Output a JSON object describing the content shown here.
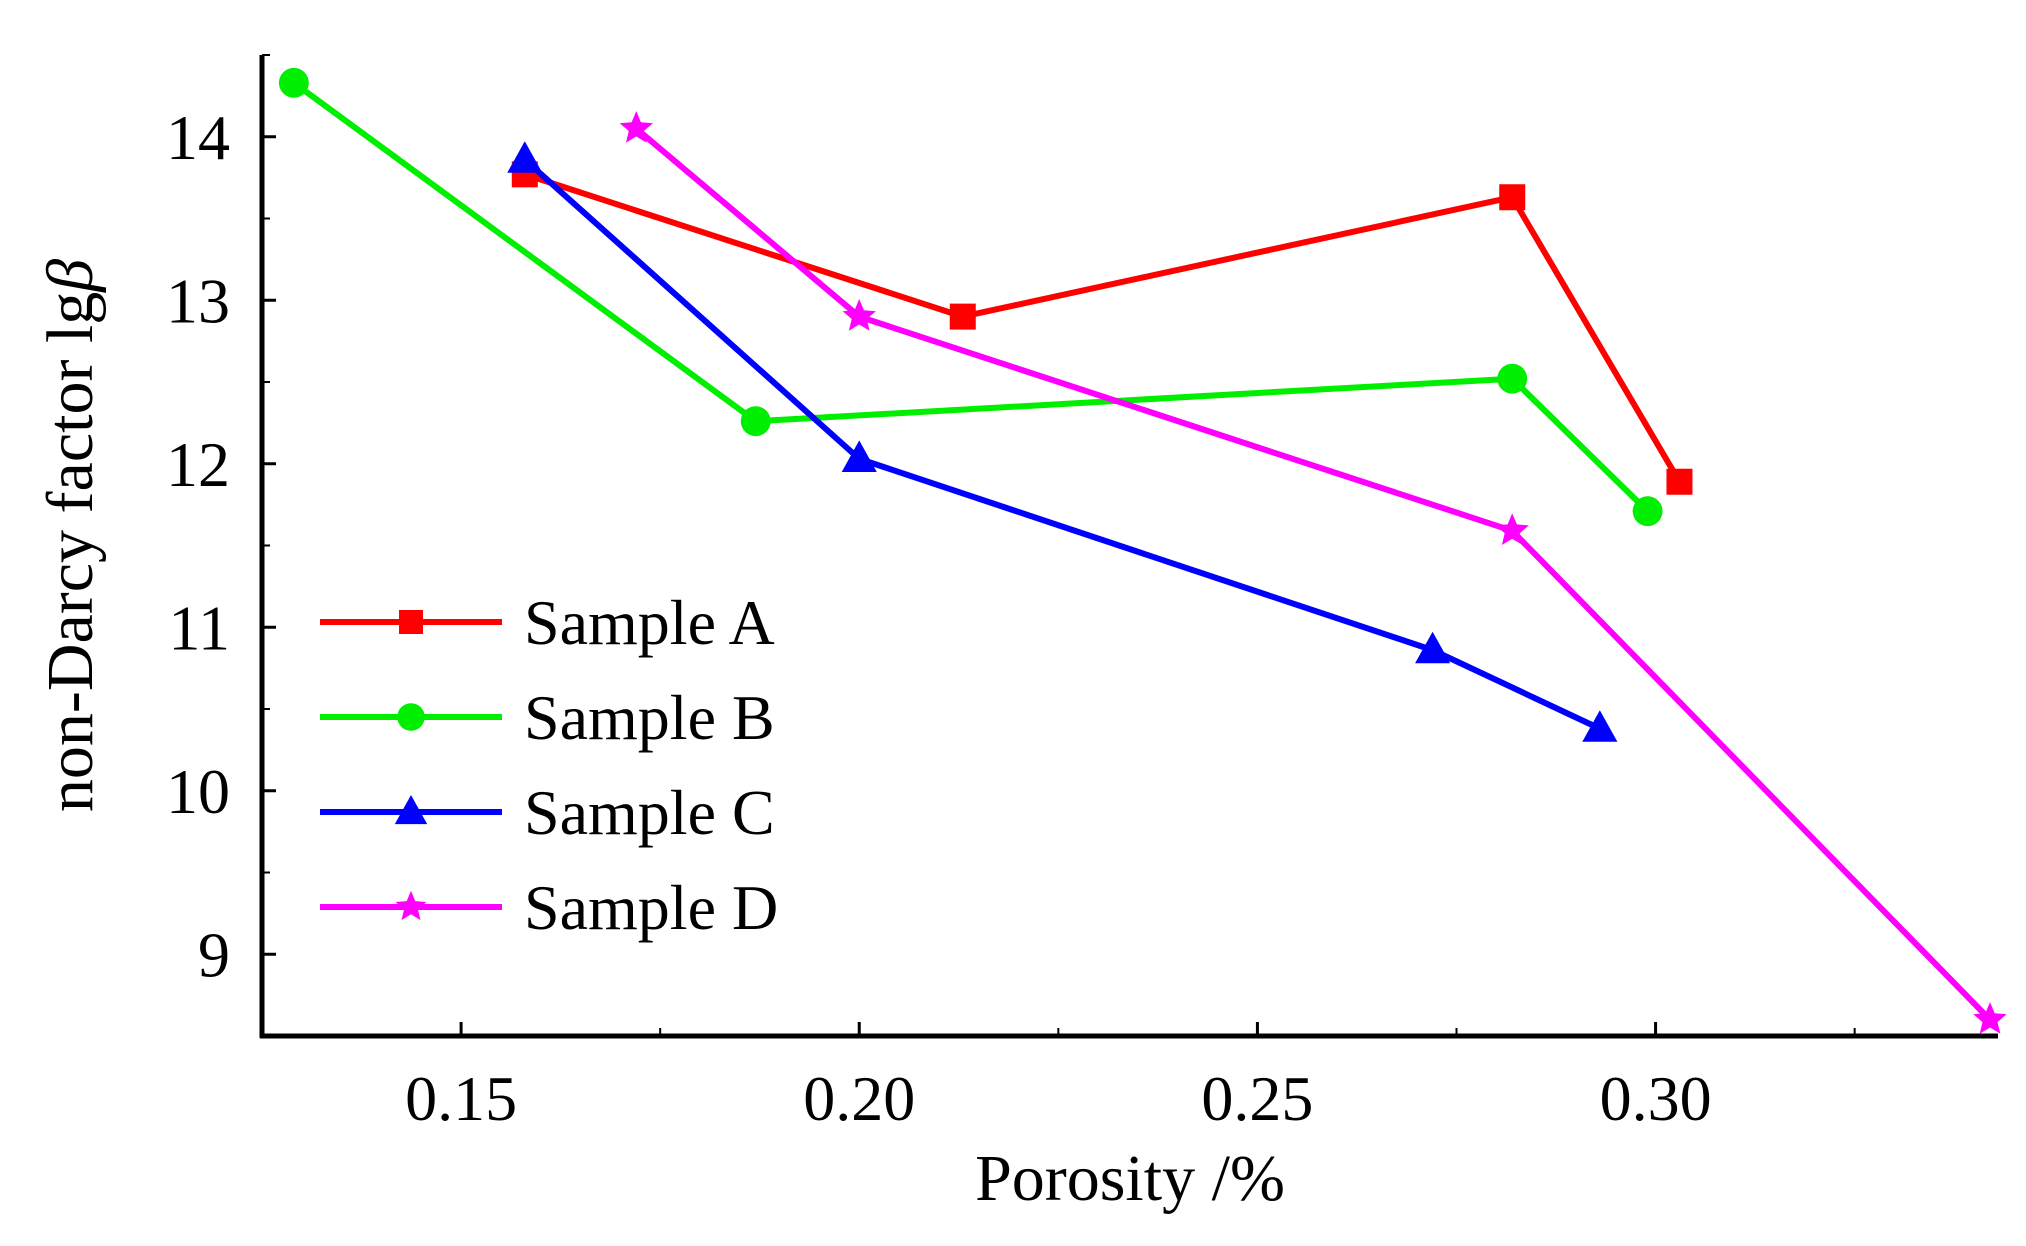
{
  "chart_data": {
    "type": "line",
    "xlabel": "Porosity /%",
    "ylabel_prefix": "non-Darcy factor lg",
    "ylabel_symbol": "β",
    "xlim": [
      0.125,
      0.343
    ],
    "ylim": [
      8.5,
      14.5
    ],
    "x_ticks": [
      {
        "value": 0.15,
        "label": "0.15"
      },
      {
        "value": 0.2,
        "label": "0.20"
      },
      {
        "value": 0.25,
        "label": "0.25"
      },
      {
        "value": 0.3,
        "label": "0.30"
      }
    ],
    "y_ticks": [
      {
        "value": 9,
        "label": "9"
      },
      {
        "value": 10,
        "label": "10"
      },
      {
        "value": 11,
        "label": "11"
      },
      {
        "value": 12,
        "label": "12"
      },
      {
        "value": 13,
        "label": "13"
      },
      {
        "value": 14,
        "label": "14"
      }
    ],
    "grid": false,
    "legend_position": "bottom-left",
    "series": [
      {
        "name": "Sample A",
        "color": "#ff0000",
        "marker": "square",
        "x": [
          0.158,
          0.213,
          0.282,
          0.303
        ],
        "y": [
          13.77,
          12.9,
          13.63,
          11.89
        ]
      },
      {
        "name": "Sample B",
        "color": "#00ee00",
        "marker": "circle",
        "x": [
          0.129,
          0.187,
          0.282,
          0.299
        ],
        "y": [
          14.33,
          12.26,
          12.52,
          11.71
        ]
      },
      {
        "name": "Sample C",
        "color": "#0000ff",
        "marker": "triangle",
        "x": [
          0.158,
          0.2,
          0.272,
          0.293
        ],
        "y": [
          13.86,
          12.03,
          10.86,
          10.38
        ]
      },
      {
        "name": "Sample D",
        "color": "#ff00ff",
        "marker": "star",
        "x": [
          0.172,
          0.2,
          0.282,
          0.342
        ],
        "y": [
          14.05,
          12.9,
          11.59,
          8.6
        ]
      }
    ]
  }
}
